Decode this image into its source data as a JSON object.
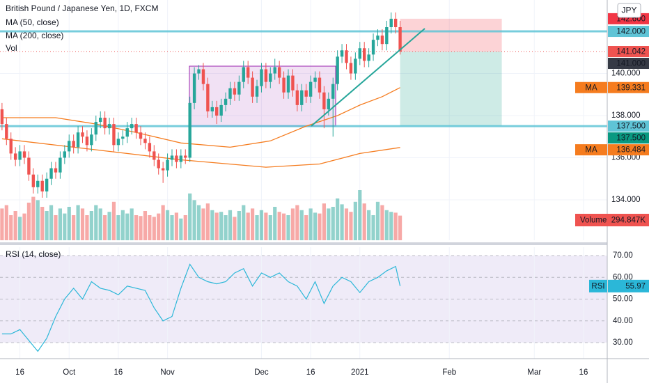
{
  "chart_data": [
    {
      "type": "candlestick",
      "title": "British Pound / Japanese Yen, 1D, FXCM",
      "currency": "JPY",
      "xlim": [
        -0.45,
        135.3
      ],
      "xticks": [
        {
          "value": 4,
          "label": "16"
        },
        {
          "value": 15,
          "label": "Oct"
        },
        {
          "value": 26,
          "label": "16"
        },
        {
          "value": 37,
          "label": "Nov"
        },
        {
          "value": 58,
          "label": "Dec"
        },
        {
          "value": 69,
          "label": "16"
        },
        {
          "value": 80,
          "label": "2021"
        },
        {
          "value": 100,
          "label": "Feb"
        },
        {
          "value": 119,
          "label": "Mar"
        },
        {
          "value": 130,
          "label": "16"
        }
      ],
      "ylim": [
        132.08,
        143.49
      ],
      "yticks": [
        {
          "value": 134,
          "label": "134.000"
        },
        {
          "value": 136,
          "label": "136.000"
        },
        {
          "value": 138,
          "label": "138.000"
        },
        {
          "value": 140,
          "label": "140.000"
        }
      ],
      "grid": true,
      "up_color": "#26a69a",
      "down_color": "#ef5350",
      "open": [
        138.3,
        137.6,
        136.9,
        136.2,
        135.9,
        136.3,
        136.0,
        135.2,
        134.6,
        134.9,
        134.4,
        135.0,
        135.5,
        135.3,
        136.0,
        136.3,
        136.8,
        136.5,
        137.2,
        137.0,
        136.6,
        137.1,
        137.7,
        137.9,
        137.4,
        137.6,
        136.6,
        136.9,
        137.0,
        137.4,
        137.6,
        137.2,
        136.9,
        136.7,
        136.3,
        135.9,
        135.5,
        135.4,
        135.9,
        136.1,
        135.8,
        136.1,
        136.0,
        138.6,
        140.0,
        140.2,
        139.5,
        138.2,
        138.4,
        138.0,
        138.5,
        138.8,
        139.3,
        139.0,
        139.6,
        140.3,
        139.8,
        138.9,
        139.4,
        140.2,
        139.6,
        140.0,
        140.3,
        139.8,
        139.1,
        139.9,
        139.2,
        138.5,
        139.2,
        138.9,
        139.6,
        139.8,
        139.1,
        138.3,
        138.8,
        139.5,
        140.8,
        141.1,
        140.5,
        140.0,
        140.7,
        141.2,
        140.6,
        140.9,
        141.6,
        141.8,
        141.4,
        142.2,
        142.6,
        142.2
      ],
      "high": [
        138.6,
        137.9,
        137.2,
        136.5,
        136.6,
        136.6,
        136.3,
        135.5,
        135.2,
        135.2,
        135.3,
        135.8,
        135.8,
        136.3,
        136.6,
        137.1,
        137.1,
        137.5,
        137.5,
        137.3,
        137.4,
        138.0,
        138.2,
        138.2,
        137.9,
        137.9,
        137.2,
        137.3,
        137.7,
        137.9,
        137.9,
        137.5,
        137.2,
        137.0,
        136.6,
        136.2,
        135.8,
        136.2,
        136.4,
        136.4,
        136.4,
        136.4,
        138.9,
        140.3,
        140.4,
        140.5,
        139.8,
        138.7,
        138.7,
        138.8,
        139.1,
        139.6,
        139.6,
        139.9,
        140.6,
        140.6,
        140.1,
        139.7,
        140.5,
        140.5,
        140.3,
        140.7,
        140.6,
        140.1,
        140.2,
        140.2,
        139.5,
        139.5,
        139.5,
        139.9,
        140.1,
        140.1,
        139.4,
        139.1,
        139.8,
        141.1,
        141.4,
        141.4,
        140.8,
        141.0,
        141.5,
        141.5,
        141.2,
        141.9,
        142.1,
        142.1,
        142.5,
        142.9,
        142.9,
        142.5
      ],
      "low": [
        137.3,
        136.6,
        135.9,
        135.6,
        135.6,
        135.7,
        134.9,
        134.3,
        134.3,
        134.1,
        134.1,
        134.7,
        135.0,
        135.0,
        135.7,
        136.0,
        136.2,
        136.2,
        136.7,
        136.3,
        136.3,
        136.8,
        137.4,
        137.1,
        137.1,
        136.3,
        136.3,
        136.6,
        136.7,
        137.1,
        136.9,
        136.6,
        136.4,
        136.0,
        135.6,
        135.2,
        134.8,
        135.1,
        135.6,
        135.5,
        135.5,
        135.7,
        135.8,
        138.3,
        139.7,
        139.2,
        137.9,
        137.9,
        137.6,
        137.7,
        138.2,
        138.5,
        138.7,
        138.7,
        139.3,
        139.5,
        138.6,
        138.6,
        139.1,
        139.3,
        139.3,
        139.7,
        139.5,
        138.8,
        138.8,
        138.9,
        138.2,
        138.2,
        138.6,
        138.6,
        139.3,
        138.8,
        137.4,
        138.0,
        137.0,
        139.2,
        140.5,
        140.2,
        139.7,
        139.7,
        140.4,
        140.3,
        140.3,
        140.6,
        141.3,
        141.1,
        141.1,
        141.9,
        141.9,
        140.9
      ],
      "close": [
        137.6,
        136.9,
        136.2,
        135.9,
        136.3,
        136.0,
        135.2,
        134.6,
        134.9,
        134.4,
        135.0,
        135.5,
        135.3,
        136.0,
        136.3,
        136.8,
        136.5,
        137.2,
        137.0,
        136.6,
        137.1,
        137.7,
        137.9,
        137.4,
        137.6,
        136.6,
        136.9,
        137.0,
        137.4,
        137.6,
        137.2,
        136.9,
        136.7,
        136.3,
        135.9,
        135.5,
        135.4,
        135.9,
        136.1,
        135.8,
        136.1,
        136.0,
        138.6,
        140.0,
        140.2,
        139.5,
        138.2,
        138.4,
        138.0,
        138.5,
        138.8,
        139.3,
        139.0,
        139.6,
        140.3,
        139.8,
        138.9,
        139.4,
        140.2,
        139.6,
        140.0,
        140.3,
        139.8,
        139.1,
        139.9,
        139.2,
        138.5,
        139.2,
        138.9,
        139.6,
        139.8,
        139.1,
        138.3,
        138.8,
        139.5,
        140.8,
        141.1,
        140.5,
        140.0,
        140.7,
        141.2,
        140.6,
        140.9,
        141.6,
        141.8,
        141.4,
        142.2,
        142.6,
        142.2,
        141.042
      ],
      "series": [
        {
          "name": "MA (50, close)",
          "short_name": "MA",
          "color": "#f57c1f",
          "x": [
            0,
            12,
            21,
            30,
            40,
            51,
            60,
            68,
            75,
            80,
            85,
            89
          ],
          "values": [
            137.9,
            137.9,
            137.6,
            137.2,
            136.7,
            136.5,
            136.8,
            137.5,
            138.0,
            138.5,
            138.9,
            139.331
          ]
        },
        {
          "name": "MA (200, close)",
          "short_name": "MA",
          "color": "#f57c1f",
          "x": [
            0,
            20,
            40,
            59,
            71,
            80,
            89
          ],
          "values": [
            136.9,
            136.4,
            135.9,
            135.55,
            135.7,
            136.2,
            136.484
          ]
        }
      ],
      "volume": {
        "name": "Vol",
        "label": "Volume",
        "values": [
          380,
          420,
          300,
          350,
          280,
          320,
          450,
          520,
          480,
          400,
          350,
          420,
          300,
          380,
          320,
          400,
          300,
          420,
          380,
          300,
          350,
          420,
          380,
          300,
          340,
          460,
          300,
          360,
          320,
          380,
          300,
          290,
          350,
          300,
          280,
          320,
          420,
          360,
          300,
          330,
          260,
          300,
          560,
          480,
          420,
          380,
          440,
          360,
          330,
          340,
          300,
          360,
          280,
          350,
          420,
          330,
          380,
          300,
          360,
          330,
          300,
          400,
          340,
          320,
          300,
          380,
          420,
          360,
          300,
          380,
          330,
          320,
          440,
          380,
          400,
          500,
          430,
          380,
          340,
          460,
          600,
          440,
          360,
          300,
          460,
          420,
          360,
          340,
          330,
          294.847
        ],
        "value_labels": [
          null,
          null,
          null,
          null,
          null,
          null,
          null,
          null,
          null,
          null,
          null,
          null,
          null,
          null,
          null,
          null,
          null,
          null,
          null,
          null,
          null,
          null,
          null,
          null,
          null,
          null,
          null,
          null,
          null,
          null,
          null,
          null,
          null,
          null,
          null,
          null,
          null,
          null,
          null,
          null,
          null,
          null,
          null,
          null,
          null,
          null,
          null,
          null,
          null,
          null,
          null,
          null,
          null,
          null,
          null,
          null,
          null,
          null,
          null,
          null,
          null,
          null,
          null,
          null,
          null,
          null,
          null,
          null,
          null,
          null,
          null,
          null,
          null,
          null,
          null,
          null,
          null,
          null,
          null,
          null,
          null,
          null,
          null,
          null,
          null,
          null,
          null,
          null,
          null,
          "294.847K"
        ]
      },
      "hlines": [
        {
          "value": 142,
          "label": "142.000",
          "color": "#5fc4d6"
        },
        {
          "value": 137.5,
          "label": "137.500",
          "color": "#5fc4d6"
        }
      ],
      "position": {
        "stop": {
          "value": 142.6,
          "label": "142.600",
          "color": "#f23645"
        },
        "target": {
          "value": 137.5,
          "label": "137.500",
          "color": "#089981"
        }
      },
      "crosshair": {
        "value": 141,
        "label": "141.000",
        "color": "#363a45"
      }
    },
    {
      "type": "line",
      "title": "RSI (14, close)",
      "ylim": [
        22.64,
        73.84
      ],
      "yticks": [
        {
          "value": 30,
          "label": "30.00"
        },
        {
          "value": 40,
          "label": "40.00"
        },
        {
          "value": 50,
          "label": "50.00"
        },
        {
          "value": 60,
          "label": "60.00"
        },
        {
          "value": 70,
          "label": "70.00"
        }
      ],
      "series": [
        {
          "name": "RSI",
          "color": "#2bb7d8",
          "x": [
            0,
            2,
            4,
            6,
            8,
            10,
            12,
            14,
            16,
            18,
            20,
            22,
            24,
            26,
            28,
            30,
            32,
            34,
            36,
            38,
            40,
            42,
            44,
            46,
            48,
            50,
            52,
            54,
            56,
            58,
            60,
            62,
            64,
            66,
            68,
            70,
            72,
            74,
            76,
            78,
            80,
            82,
            84,
            86,
            88,
            89
          ],
          "values": [
            34,
            34,
            36,
            31,
            26,
            32,
            42,
            50,
            55,
            50,
            58,
            55,
            54,
            52,
            56,
            55,
            54,
            46,
            40,
            42,
            55,
            66,
            60,
            58,
            57,
            58,
            62,
            64,
            56,
            62,
            60,
            62,
            58,
            56,
            50,
            58,
            48,
            56,
            60,
            58,
            53,
            58,
            60,
            63,
            65,
            55.97
          ]
        }
      ]
    }
  ]
}
